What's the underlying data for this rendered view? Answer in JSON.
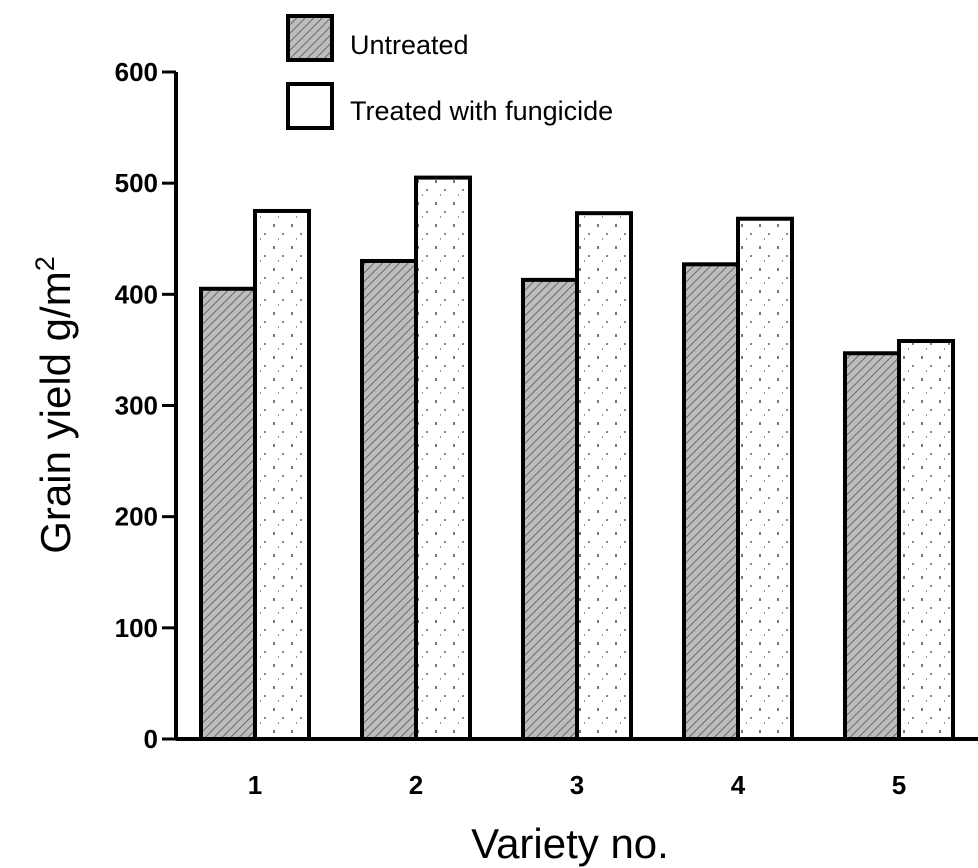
{
  "chart_data": {
    "type": "bar",
    "categories": [
      "1",
      "2",
      "3",
      "4",
      "5"
    ],
    "series": [
      {
        "name": "Untreated",
        "values": [
          405,
          430,
          413,
          427,
          347
        ]
      },
      {
        "name": "Treated with fungicide",
        "values": [
          475,
          505,
          473,
          468,
          358
        ]
      }
    ],
    "xlabel": "Variety no.",
    "ylabel": "Grain yield g/m",
    "ylabel_superscript": "2",
    "ylim": [
      0,
      600
    ],
    "yticks": [
      0,
      100,
      200,
      300,
      400,
      500,
      600
    ],
    "grid": false,
    "legend_position": "top-left",
    "colors": {
      "untreated_fill": "#b5b5b5",
      "treated_fill": "#ffffff",
      "stroke": "#000000"
    }
  }
}
